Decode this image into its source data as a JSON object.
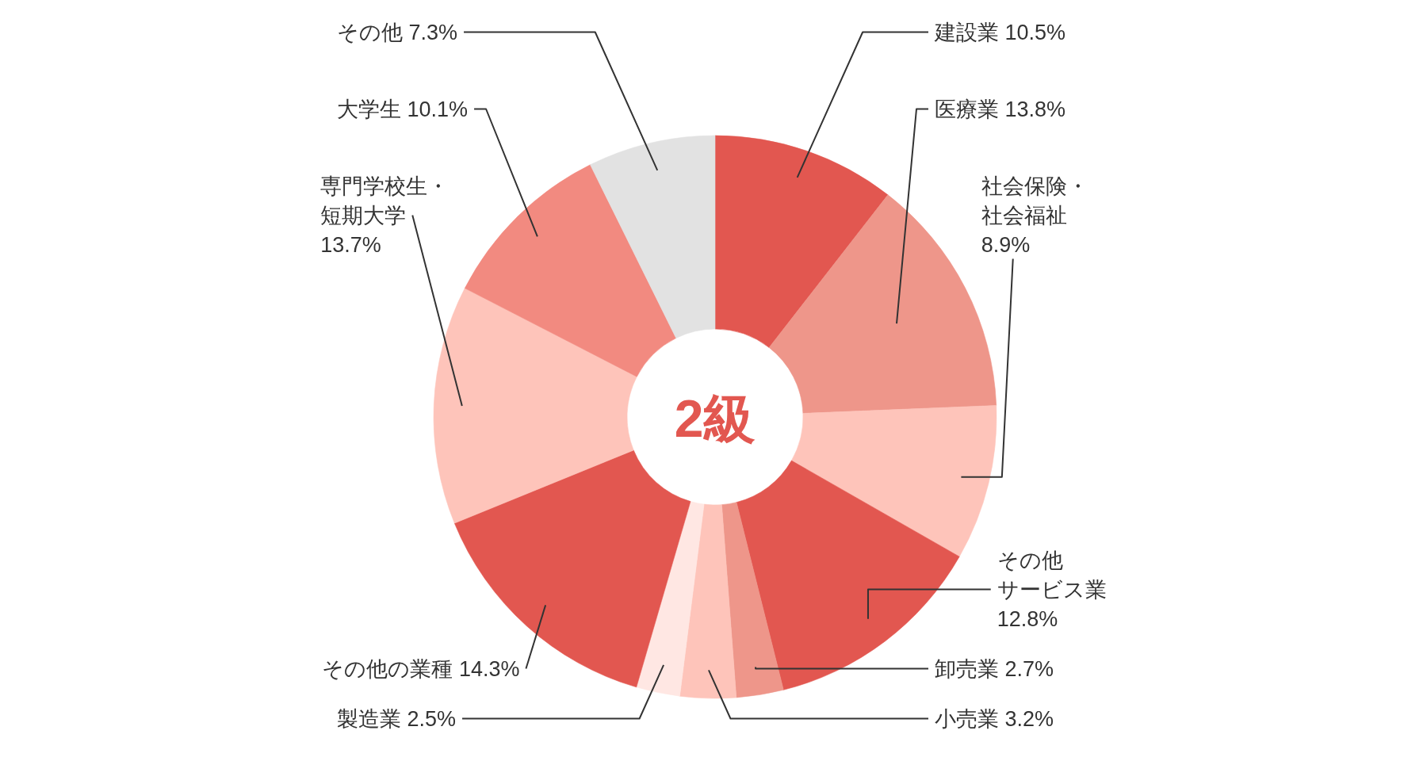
{
  "chart_data": {
    "type": "donut",
    "title": "2級",
    "categories": [
      "建設業",
      "医療業",
      "社会保険・社会福祉",
      "その他サービス業",
      "卸売業",
      "小売業",
      "製造業",
      "その他の業種",
      "専門学校生・短期大学",
      "大学生",
      "その他"
    ],
    "values": [
      10.5,
      13.8,
      8.9,
      12.8,
      2.7,
      3.2,
      2.5,
      14.3,
      13.7,
      10.1,
      7.3
    ],
    "value_labels": [
      "10.5%",
      "13.8%",
      "8.9%",
      "12.8%",
      "2.7%",
      "3.2%",
      "2.5%",
      "14.3%",
      "13.7%",
      "10.1%",
      "7.3%"
    ],
    "colors": [
      "#e25750",
      "#ee968a",
      "#fec4ba",
      "#e25750",
      "#ee968a",
      "#fec4ba",
      "#ffe7e3",
      "#e25750",
      "#fec4ba",
      "#f28a80",
      "#e2e2e2"
    ]
  }
}
